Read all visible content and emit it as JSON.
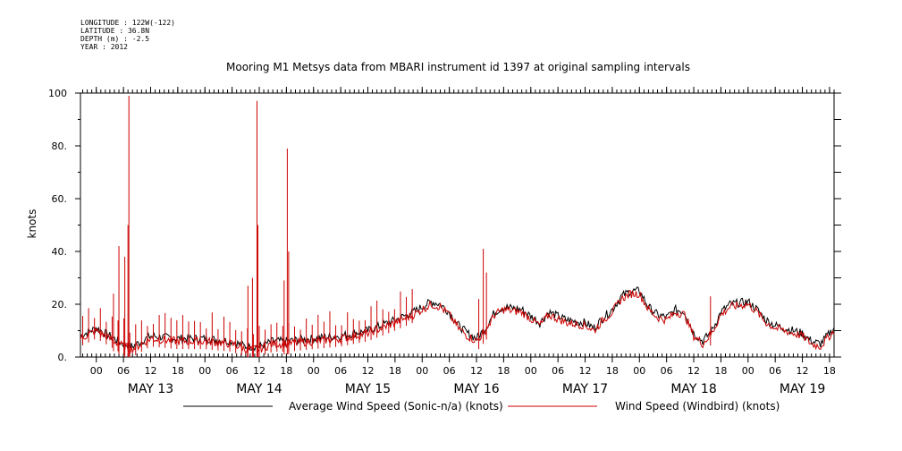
{
  "header": {
    "longitude": "LONGITUDE : 122W(-122)",
    "latitude": "LATITUDE : 36.8N",
    "depth": "DEPTH (m) : -2.5",
    "year": "YEAR : 2012"
  },
  "chart_data": {
    "type": "line",
    "title": "Mooring M1 Metsys data from MBARI instrument id 1397 at original sampling intervals",
    "xlabel": "",
    "ylabel": "knots",
    "ylim": [
      0,
      100
    ],
    "xlim_hours": [
      -3.5,
      163
    ],
    "x_unit": "hours from 2012-05-13 00:00",
    "yticks": [
      0,
      20,
      40,
      60,
      80,
      100
    ],
    "ytick_labels": [
      "0.",
      "20.",
      "40.",
      "60.",
      "80.",
      "100"
    ],
    "xtick_hours": [
      0,
      6,
      12,
      18,
      24,
      30,
      36,
      42,
      48,
      54,
      60,
      66,
      72,
      78,
      84,
      90,
      96,
      102,
      108,
      114,
      120,
      126,
      132,
      138,
      144,
      150,
      156,
      162
    ],
    "xtick_labels": [
      "00",
      "06",
      "12",
      "18",
      "00",
      "06",
      "12",
      "18",
      "00",
      "06",
      "12",
      "18",
      "00",
      "06",
      "12",
      "18",
      "00",
      "06",
      "12",
      "18",
      "00",
      "06",
      "12",
      "18",
      "00",
      "06",
      "12",
      "18"
    ],
    "day_labels": [
      {
        "label": "MAY 13",
        "hour": 12
      },
      {
        "label": "MAY 14",
        "hour": 36
      },
      {
        "label": "MAY 15",
        "hour": 60
      },
      {
        "label": "MAY 16",
        "hour": 84
      },
      {
        "label": "MAY 17",
        "hour": 108
      },
      {
        "label": "MAY 18",
        "hour": 132
      },
      {
        "label": "MAY 19",
        "hour": 156
      }
    ],
    "series": [
      {
        "name": "Average Wind Speed (Sonic-n/a) (knots)",
        "color": "#000000",
        "x": [
          -3.5,
          0,
          3,
          6,
          8,
          12,
          18,
          24,
          30,
          33,
          36,
          39,
          42,
          48,
          54,
          60,
          66,
          70,
          72,
          74,
          76,
          78,
          80,
          82,
          84,
          86,
          88,
          90,
          94,
          98,
          100,
          104,
          108,
          110,
          112,
          114,
          116,
          118,
          120,
          122,
          124,
          126,
          128,
          130,
          132,
          134,
          136,
          138,
          140,
          144,
          146,
          148,
          150,
          152,
          156,
          158,
          160,
          163
        ],
        "values": [
          8,
          11,
          8,
          5,
          4,
          8,
          7,
          7,
          6,
          4,
          4,
          6,
          6,
          7,
          8,
          10,
          14,
          17,
          19,
          21,
          20,
          17,
          12,
          9,
          7,
          11,
          17,
          19,
          18,
          13,
          17,
          14,
          13,
          11,
          15,
          18,
          23,
          25,
          25,
          19,
          16,
          15,
          18,
          17,
          9,
          6,
          10,
          17,
          20,
          21,
          18,
          14,
          12,
          11,
          9,
          6,
          5,
          11
        ]
      },
      {
        "name": "Wind Speed (Windbird) (knots)",
        "color": "#cc0000",
        "x": [
          -3.5,
          0,
          3,
          6,
          8,
          12,
          18,
          24,
          30,
          33,
          36,
          39,
          42,
          48,
          54,
          60,
          66,
          70,
          72,
          74,
          76,
          78,
          80,
          82,
          84,
          86,
          88,
          90,
          94,
          98,
          100,
          104,
          108,
          110,
          112,
          114,
          116,
          118,
          120,
          122,
          124,
          126,
          128,
          130,
          132,
          134,
          136,
          138,
          140,
          144,
          146,
          148,
          150,
          152,
          156,
          158,
          160,
          163
        ],
        "values": [
          7,
          10,
          7,
          4,
          3,
          7,
          6,
          6,
          5,
          3,
          3,
          5,
          5,
          6,
          7,
          9,
          13,
          16,
          18,
          20,
          19,
          16,
          11,
          8,
          6,
          10,
          16,
          18,
          17,
          12,
          16,
          13,
          12,
          10,
          14,
          17,
          22,
          24,
          24,
          18,
          15,
          14,
          17,
          16,
          8,
          5,
          9,
          16,
          19,
          20,
          17,
          13,
          11,
          10,
          8,
          5,
          4,
          10
        ],
        "spikes": [
          {
            "x": 7.2,
            "y": 99
          },
          {
            "x": 7.0,
            "y": 50
          },
          {
            "x": 5.0,
            "y": 42
          },
          {
            "x": 6.3,
            "y": 38
          },
          {
            "x": 3.8,
            "y": 24
          },
          {
            "x": 35.5,
            "y": 97
          },
          {
            "x": 35.7,
            "y": 50
          },
          {
            "x": 34.5,
            "y": 30
          },
          {
            "x": 33.5,
            "y": 27
          },
          {
            "x": 42.2,
            "y": 79
          },
          {
            "x": 42.5,
            "y": 40
          },
          {
            "x": 41.5,
            "y": 29
          },
          {
            "x": 85.5,
            "y": 41
          },
          {
            "x": 86.2,
            "y": 32
          },
          {
            "x": 84.5,
            "y": 22
          },
          {
            "x": 135.7,
            "y": 23
          }
        ],
        "pulses_below_hour": 70,
        "pulse_spacing_hours": 1.3,
        "pulse_height_knots": 8
      }
    ],
    "legend": [
      "Average Wind Speed (Sonic-n/a) (knots)",
      "Wind Speed (Windbird) (knots)"
    ],
    "legend_position": "bottom"
  }
}
